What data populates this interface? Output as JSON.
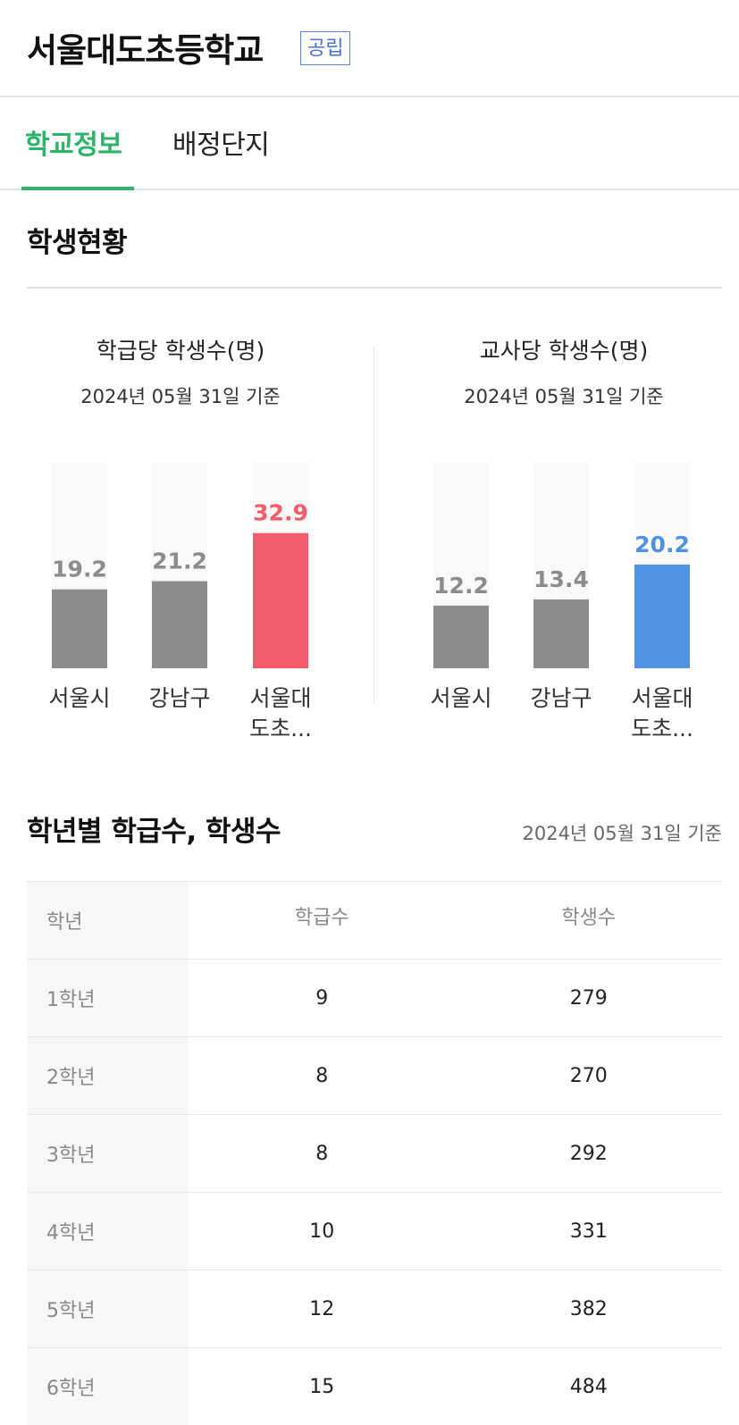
{
  "school": {
    "name": "서울대도초등학교",
    "type_badge": "공립"
  },
  "tabs": [
    {
      "label": "학교정보",
      "active": true
    },
    {
      "label": "배정단지",
      "active": false
    }
  ],
  "student_status": {
    "title": "학생현황",
    "colors": {
      "gray": "#8c8c8c",
      "track": "#f9f9f9",
      "red": "#f45c6b",
      "blue": "#4f92e3"
    }
  },
  "chart_data": [
    {
      "type": "bar",
      "title": "학급당 학생수(명)",
      "subtitle": "2024년 05월 31일 기준",
      "categories": [
        "서울시",
        "강남구",
        "서울대도초..."
      ],
      "category_lines": [
        [
          "서울시"
        ],
        [
          "강남구"
        ],
        [
          "서울대",
          "도초..."
        ]
      ],
      "values": [
        19.2,
        21.2,
        32.9
      ],
      "highlight_index": 2,
      "highlight_color": "#f45c6b",
      "ylim": [
        0,
        50
      ]
    },
    {
      "type": "bar",
      "title": "교사당 학생수(명)",
      "subtitle": "2024년 05월 31일 기준",
      "categories": [
        "서울시",
        "강남구",
        "서울대도초..."
      ],
      "category_lines": [
        [
          "서울시"
        ],
        [
          "강남구"
        ],
        [
          "서울대",
          "도초..."
        ]
      ],
      "values": [
        12.2,
        13.4,
        20.2
      ],
      "highlight_index": 2,
      "highlight_color": "#4f92e3",
      "ylim": [
        0,
        40
      ]
    }
  ],
  "grade_section": {
    "title": "학년별 학급수, 학생수",
    "date": "2024년 05월 31일 기준",
    "headers": [
      "학년",
      "학급수",
      "학생수"
    ],
    "rows": [
      {
        "grade": "1학년",
        "classes": "9",
        "students": "279"
      },
      {
        "grade": "2학년",
        "classes": "8",
        "students": "270"
      },
      {
        "grade": "3학년",
        "classes": "8",
        "students": "292"
      },
      {
        "grade": "4학년",
        "classes": "10",
        "students": "331"
      },
      {
        "grade": "5학년",
        "classes": "12",
        "students": "382"
      },
      {
        "grade": "6학년",
        "classes": "15",
        "students": "484"
      }
    ]
  }
}
